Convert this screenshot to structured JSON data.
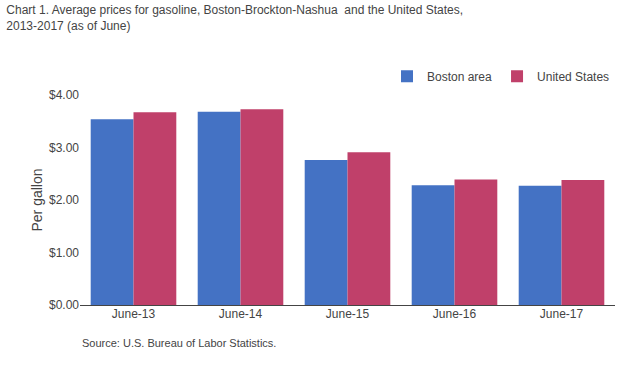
{
  "chart_data": {
    "type": "bar",
    "title": "Chart 1. Average prices for gasoline, Boston-Brockton-Nashua  and the United States,\n2013-2017 (as of June)",
    "ylabel": "Per gallon",
    "annotations": [
      "Source: U.S. Bureau of Labor Statistics."
    ],
    "categories": [
      "June-13",
      "June-14",
      "June-15",
      "June-16",
      "June-17"
    ],
    "series": [
      {
        "name": "Boston area",
        "color": "#4472C4",
        "values": [
          3.54,
          3.68,
          2.76,
          2.28,
          2.27
        ]
      },
      {
        "name": "United States",
        "color": "#C0406A",
        "values": [
          3.67,
          3.73,
          2.91,
          2.39,
          2.38
        ]
      }
    ],
    "ylim": [
      0,
      4.0
    ],
    "yticks": [
      {
        "value": 0.0,
        "label": "$0.00"
      },
      {
        "value": 1.0,
        "label": "$1.00"
      },
      {
        "value": 2.0,
        "label": "$2.00"
      },
      {
        "value": 3.0,
        "label": "$3.00"
      },
      {
        "value": 4.0,
        "label": "$4.00"
      }
    ],
    "grid": false,
    "legend": "upper right"
  }
}
